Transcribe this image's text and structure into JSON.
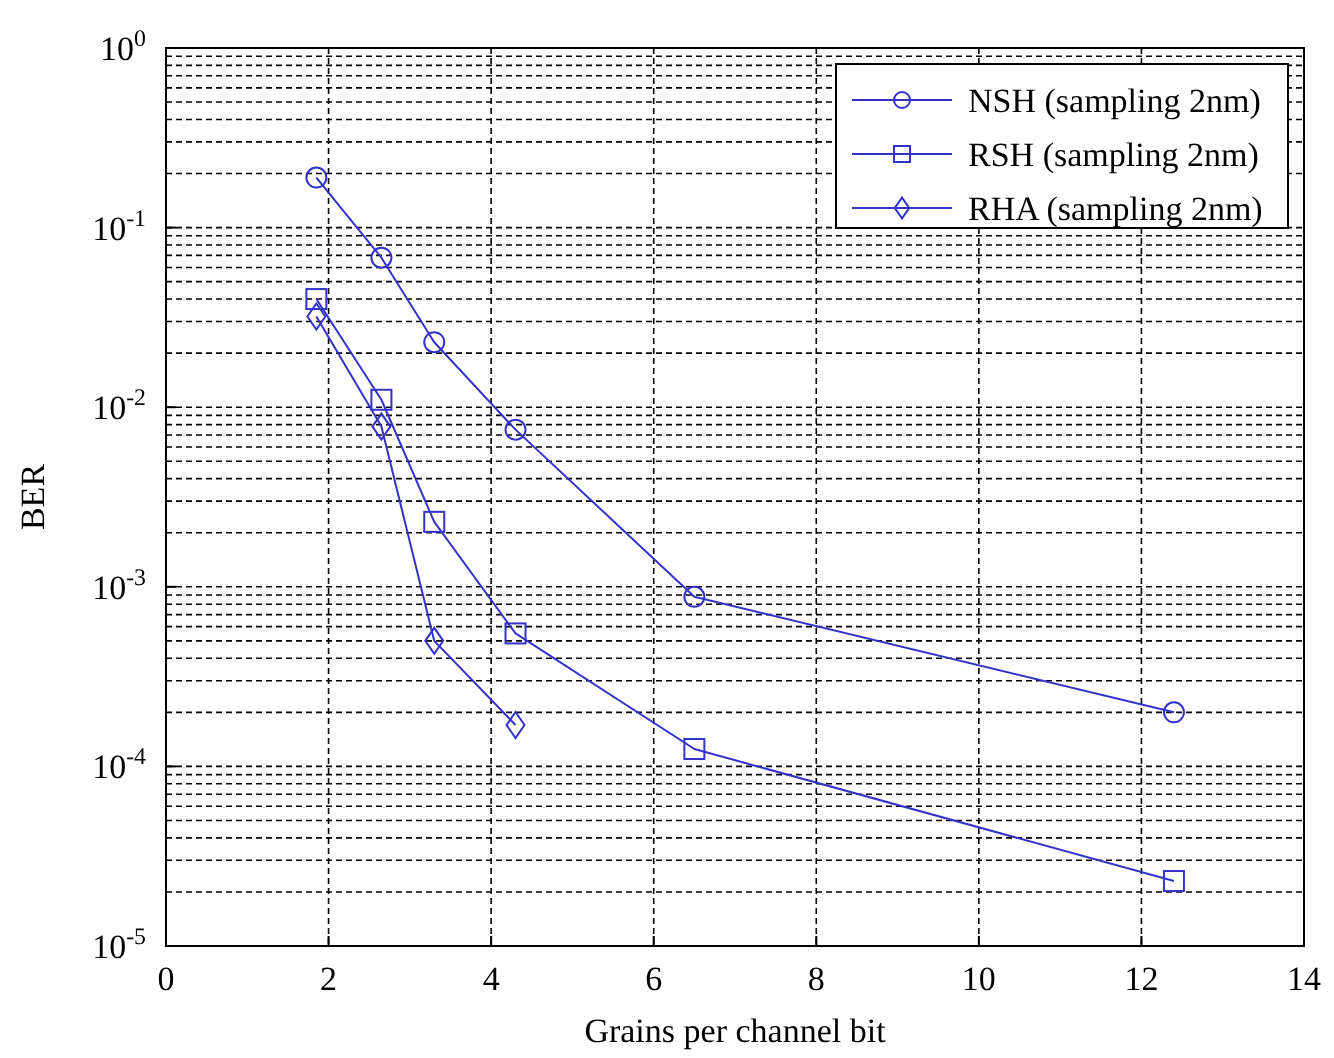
{
  "chart_data": {
    "type": "line",
    "xlabel": "Grains per channel bit",
    "ylabel": "BER",
    "log": "y",
    "grid": true,
    "legend": "top right",
    "line_style": "solid",
    "xlim": [
      0,
      14
    ],
    "xticks": [
      0,
      2,
      4,
      6,
      8,
      10,
      12,
      14
    ],
    "ylim": [
      1e-05,
      1
    ],
    "yticks": [
      {
        "value": 1e-05,
        "label": "10$^{-5}$"
      },
      {
        "value": 2e-05,
        "label": null
      },
      {
        "value": 3e-05,
        "label": null
      },
      {
        "value": 4e-05,
        "label": null
      },
      {
        "value": 5e-05,
        "label": null
      },
      {
        "value": 6e-05,
        "label": null
      },
      {
        "value": 7e-05,
        "label": null
      },
      {
        "value": 8e-05,
        "label": null
      },
      {
        "value": 9e-05,
        "label": null
      },
      {
        "value": 0.0001,
        "label": "10$^{-4}$"
      },
      {
        "value": 0.0002,
        "label": null
      },
      {
        "value": 0.0003,
        "label": null
      },
      {
        "value": 0.0004,
        "label": null
      },
      {
        "value": 0.0005,
        "label": null
      },
      {
        "value": 0.0006,
        "label": null
      },
      {
        "value": 0.0007,
        "label": null
      },
      {
        "value": 0.0008,
        "label": null
      },
      {
        "value": 0.0009,
        "label": null
      },
      {
        "value": 0.001,
        "label": "10$^{-3}$"
      },
      {
        "value": 0.002,
        "label": null
      },
      {
        "value": 0.003,
        "label": null
      },
      {
        "value": 0.004,
        "label": null
      },
      {
        "value": 0.005,
        "label": null
      },
      {
        "value": 0.006,
        "label": null
      },
      {
        "value": 0.007,
        "label": null
      },
      {
        "value": 0.008,
        "label": null
      },
      {
        "value": 0.009,
        "label": null
      },
      {
        "value": 0.01,
        "label": "10$^{-2}$"
      },
      {
        "value": 0.02,
        "label": null
      },
      {
        "value": 0.03,
        "label": null
      },
      {
        "value": 0.04,
        "label": null
      },
      {
        "value": 0.05,
        "label": null
      },
      {
        "value": 0.06,
        "label": null
      },
      {
        "value": 0.07,
        "label": null
      },
      {
        "value": 0.08,
        "label": null
      },
      {
        "value": 0.09,
        "label": null
      },
      {
        "value": 0.1,
        "label": "10$^{-1}$"
      },
      {
        "value": 0.2,
        "label": null
      },
      {
        "value": 0.3,
        "label": null
      },
      {
        "value": 0.4,
        "label": null
      },
      {
        "value": 0.5,
        "label": null
      },
      {
        "value": 0.6,
        "label": null
      },
      {
        "value": 0.7,
        "label": null
      },
      {
        "value": 0.8,
        "label": null
      },
      {
        "value": 0.9,
        "label": null
      },
      {
        "value": 1,
        "label": "10$^{0}$"
      }
    ],
    "series": [
      {
        "name": "NSH (sampling 2nm)",
        "color": "#3333cc",
        "marker": "circle",
        "x": [
          1.85,
          2.65,
          3.3,
          4.3,
          6.5,
          12.4
        ],
        "values": [
          0.19,
          0.068,
          0.023,
          0.0075,
          0.00088,
          0.0002
        ]
      },
      {
        "name": "RSH (sampling 2nm)",
        "color": "#3333cc",
        "marker": "square",
        "x": [
          1.85,
          2.65,
          3.3,
          4.3,
          6.5,
          12.4
        ],
        "values": [
          0.04,
          0.011,
          0.0023,
          0.00055,
          0.000125,
          2.3e-05
        ]
      },
      {
        "name": "RHA (sampling 2nm)",
        "color": "#3333cc",
        "marker": "diamond",
        "x": [
          1.85,
          2.65,
          3.3,
          4.3
        ],
        "values": [
          0.032,
          0.0078,
          0.0005,
          0.00017
        ]
      }
    ]
  }
}
